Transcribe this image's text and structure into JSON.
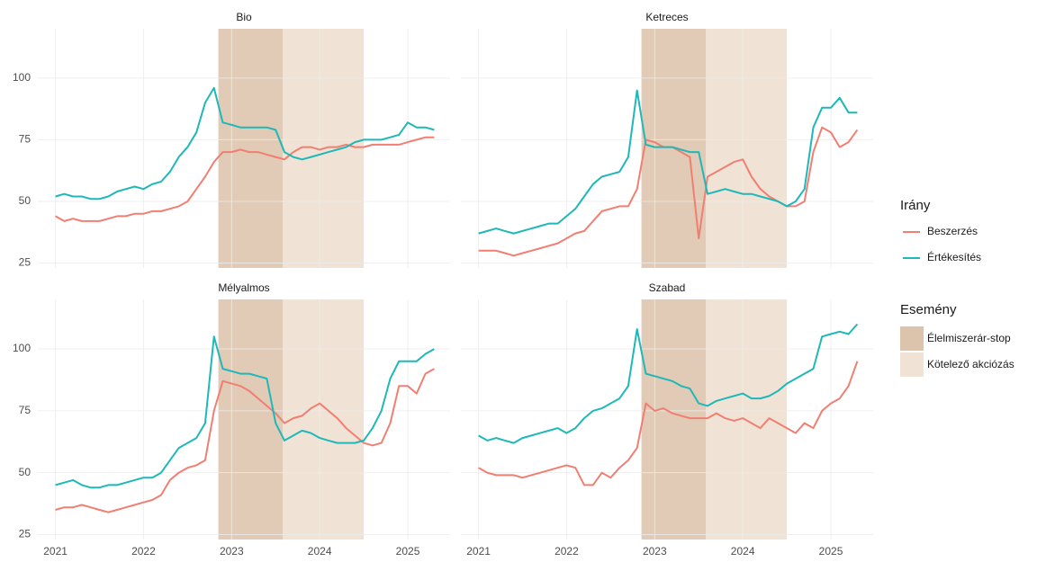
{
  "chart_data": [
    {
      "type": "line",
      "title": "Bio",
      "x": [
        2021.0,
        2021.1,
        2021.2,
        2021.3,
        2021.4,
        2021.5,
        2021.6,
        2021.7,
        2021.8,
        2021.9,
        2022.0,
        2022.1,
        2022.2,
        2022.3,
        2022.4,
        2022.5,
        2022.6,
        2022.7,
        2022.8,
        2022.9,
        2023.0,
        2023.1,
        2023.2,
        2023.3,
        2023.4,
        2023.5,
        2023.6,
        2023.7,
        2023.8,
        2023.9,
        2024.0,
        2024.1,
        2024.2,
        2024.3,
        2024.4,
        2024.5,
        2024.6,
        2024.7,
        2024.8,
        2024.9,
        2025.0,
        2025.1,
        2025.2,
        2025.3
      ],
      "series": [
        {
          "name": "Beszerzés",
          "color": "#f07f72",
          "values": [
            44,
            42,
            43,
            42,
            42,
            42,
            43,
            44,
            44,
            45,
            45,
            46,
            46,
            47,
            48,
            50,
            55,
            60,
            66,
            70,
            70,
            71,
            70,
            70,
            69,
            68,
            67,
            70,
            72,
            72,
            71,
            72,
            72,
            73,
            72,
            72,
            73,
            73,
            73,
            73,
            74,
            75,
            76,
            76
          ]
        },
        {
          "name": "Értékesítés",
          "color": "#1fb8b8",
          "values": [
            52,
            53,
            52,
            52,
            51,
            51,
            52,
            54,
            55,
            56,
            55,
            57,
            58,
            62,
            68,
            72,
            78,
            90,
            96,
            82,
            81,
            80,
            80,
            80,
            80,
            79,
            70,
            68,
            67,
            68,
            69,
            70,
            71,
            72,
            74,
            75,
            75,
            75,
            76,
            77,
            82,
            80,
            80,
            79
          ]
        }
      ],
      "xlim": [
        2020.8,
        2025.48
      ],
      "xticks": [
        2021,
        2022,
        2023,
        2024,
        2025
      ],
      "ylim": [
        23,
        120
      ],
      "yticks": [
        25,
        50,
        75,
        100
      ],
      "grid": true
    },
    {
      "type": "line",
      "title": "Ketreces",
      "x": [
        2021.0,
        2021.1,
        2021.2,
        2021.3,
        2021.4,
        2021.5,
        2021.6,
        2021.7,
        2021.8,
        2021.9,
        2022.0,
        2022.1,
        2022.2,
        2022.3,
        2022.4,
        2022.5,
        2022.6,
        2022.7,
        2022.8,
        2022.9,
        2023.0,
        2023.1,
        2023.2,
        2023.3,
        2023.4,
        2023.5,
        2023.6,
        2023.7,
        2023.8,
        2023.9,
        2024.0,
        2024.1,
        2024.2,
        2024.3,
        2024.4,
        2024.5,
        2024.6,
        2024.7,
        2024.8,
        2024.9,
        2025.0,
        2025.1,
        2025.2,
        2025.3
      ],
      "series": [
        {
          "name": "Beszerzés",
          "color": "#f07f72",
          "values": [
            30,
            30,
            30,
            29,
            28,
            29,
            30,
            31,
            32,
            33,
            35,
            37,
            38,
            42,
            46,
            47,
            48,
            48,
            55,
            75,
            74,
            72,
            72,
            70,
            68,
            35,
            60,
            62,
            64,
            66,
            67,
            60,
            55,
            52,
            50,
            48,
            48,
            50,
            70,
            80,
            78,
            72,
            74,
            79
          ]
        },
        {
          "name": "Értékesítés",
          "color": "#1fb8b8",
          "values": [
            37,
            38,
            39,
            38,
            37,
            38,
            39,
            40,
            41,
            41,
            44,
            47,
            52,
            57,
            60,
            61,
            62,
            68,
            95,
            73,
            72,
            72,
            72,
            71,
            70,
            70,
            53,
            54,
            55,
            54,
            53,
            53,
            52,
            51,
            50,
            48,
            50,
            55,
            80,
            88,
            88,
            92,
            86,
            86
          ]
        }
      ],
      "xlim": [
        2020.8,
        2025.48
      ],
      "xticks": [
        2021,
        2022,
        2023,
        2024,
        2025
      ],
      "ylim": [
        23,
        120
      ],
      "yticks": [
        25,
        50,
        75,
        100
      ],
      "grid": true
    },
    {
      "type": "line",
      "title": "Mélyalmos",
      "x": [
        2021.0,
        2021.1,
        2021.2,
        2021.3,
        2021.4,
        2021.5,
        2021.6,
        2021.7,
        2021.8,
        2021.9,
        2022.0,
        2022.1,
        2022.2,
        2022.3,
        2022.4,
        2022.5,
        2022.6,
        2022.7,
        2022.8,
        2022.9,
        2023.0,
        2023.1,
        2023.2,
        2023.3,
        2023.4,
        2023.5,
        2023.6,
        2023.7,
        2023.8,
        2023.9,
        2024.0,
        2024.1,
        2024.2,
        2024.3,
        2024.4,
        2024.5,
        2024.6,
        2024.7,
        2024.8,
        2024.9,
        2025.0,
        2025.1,
        2025.2,
        2025.3
      ],
      "series": [
        {
          "name": "Beszerzés",
          "color": "#f07f72",
          "values": [
            35,
            36,
            36,
            37,
            36,
            35,
            34,
            35,
            36,
            37,
            38,
            39,
            41,
            47,
            50,
            52,
            53,
            55,
            75,
            87,
            86,
            85,
            83,
            80,
            77,
            74,
            70,
            72,
            73,
            76,
            78,
            75,
            72,
            68,
            65,
            62,
            61,
            62,
            70,
            85,
            85,
            82,
            90,
            92
          ]
        },
        {
          "name": "Értékesítés",
          "color": "#1fb8b8",
          "values": [
            45,
            46,
            47,
            45,
            44,
            44,
            45,
            45,
            46,
            47,
            48,
            48,
            50,
            55,
            60,
            62,
            64,
            70,
            105,
            92,
            91,
            90,
            90,
            89,
            88,
            70,
            63,
            65,
            67,
            66,
            64,
            63,
            62,
            62,
            62,
            63,
            68,
            75,
            88,
            95,
            95,
            95,
            98,
            100
          ]
        }
      ],
      "xlim": [
        2020.8,
        2025.48
      ],
      "xticks": [
        2021,
        2022,
        2023,
        2024,
        2025
      ],
      "ylim": [
        23,
        120
      ],
      "yticks": [
        25,
        50,
        75,
        100
      ],
      "grid": true
    },
    {
      "type": "line",
      "title": "Szabad",
      "x": [
        2021.0,
        2021.1,
        2021.2,
        2021.3,
        2021.4,
        2021.5,
        2021.6,
        2021.7,
        2021.8,
        2021.9,
        2022.0,
        2022.1,
        2022.2,
        2022.3,
        2022.4,
        2022.5,
        2022.6,
        2022.7,
        2022.8,
        2022.9,
        2023.0,
        2023.1,
        2023.2,
        2023.3,
        2023.4,
        2023.5,
        2023.6,
        2023.7,
        2023.8,
        2023.9,
        2024.0,
        2024.1,
        2024.2,
        2024.3,
        2024.4,
        2024.5,
        2024.6,
        2024.7,
        2024.8,
        2024.9,
        2025.0,
        2025.1,
        2025.2,
        2025.3
      ],
      "series": [
        {
          "name": "Beszerzés",
          "color": "#f07f72",
          "values": [
            52,
            50,
            49,
            49,
            49,
            48,
            49,
            50,
            51,
            52,
            53,
            52,
            45,
            45,
            50,
            48,
            52,
            55,
            60,
            78,
            75,
            76,
            74,
            73,
            72,
            72,
            72,
            74,
            72,
            71,
            72,
            70,
            68,
            72,
            70,
            68,
            66,
            70,
            68,
            75,
            78,
            80,
            85,
            95
          ]
        },
        {
          "name": "Értékesítés",
          "color": "#1fb8b8",
          "values": [
            65,
            63,
            64,
            63,
            62,
            64,
            65,
            66,
            67,
            68,
            66,
            68,
            72,
            75,
            76,
            78,
            80,
            85,
            108,
            90,
            89,
            88,
            87,
            85,
            84,
            78,
            77,
            79,
            80,
            81,
            82,
            80,
            80,
            81,
            83,
            86,
            88,
            90,
            92,
            105,
            106,
            107,
            106,
            110
          ]
        }
      ],
      "xlim": [
        2020.8,
        2025.48
      ],
      "xticks": [
        2021,
        2022,
        2023,
        2024,
        2025
      ],
      "ylim": [
        23,
        120
      ],
      "yticks": [
        25,
        50,
        75,
        100
      ],
      "grid": true
    }
  ],
  "legend_title": "Irány",
  "event_legend_title": "Esemény",
  "events": [
    {
      "name": "Élelmiszerár-stop",
      "color": "#dcc3ab",
      "start": 2022.85,
      "end": 2023.58
    },
    {
      "name": "Kötelező akciózás",
      "color": "#f0e3d5",
      "start": 2022.85,
      "end": 2024.5
    }
  ]
}
